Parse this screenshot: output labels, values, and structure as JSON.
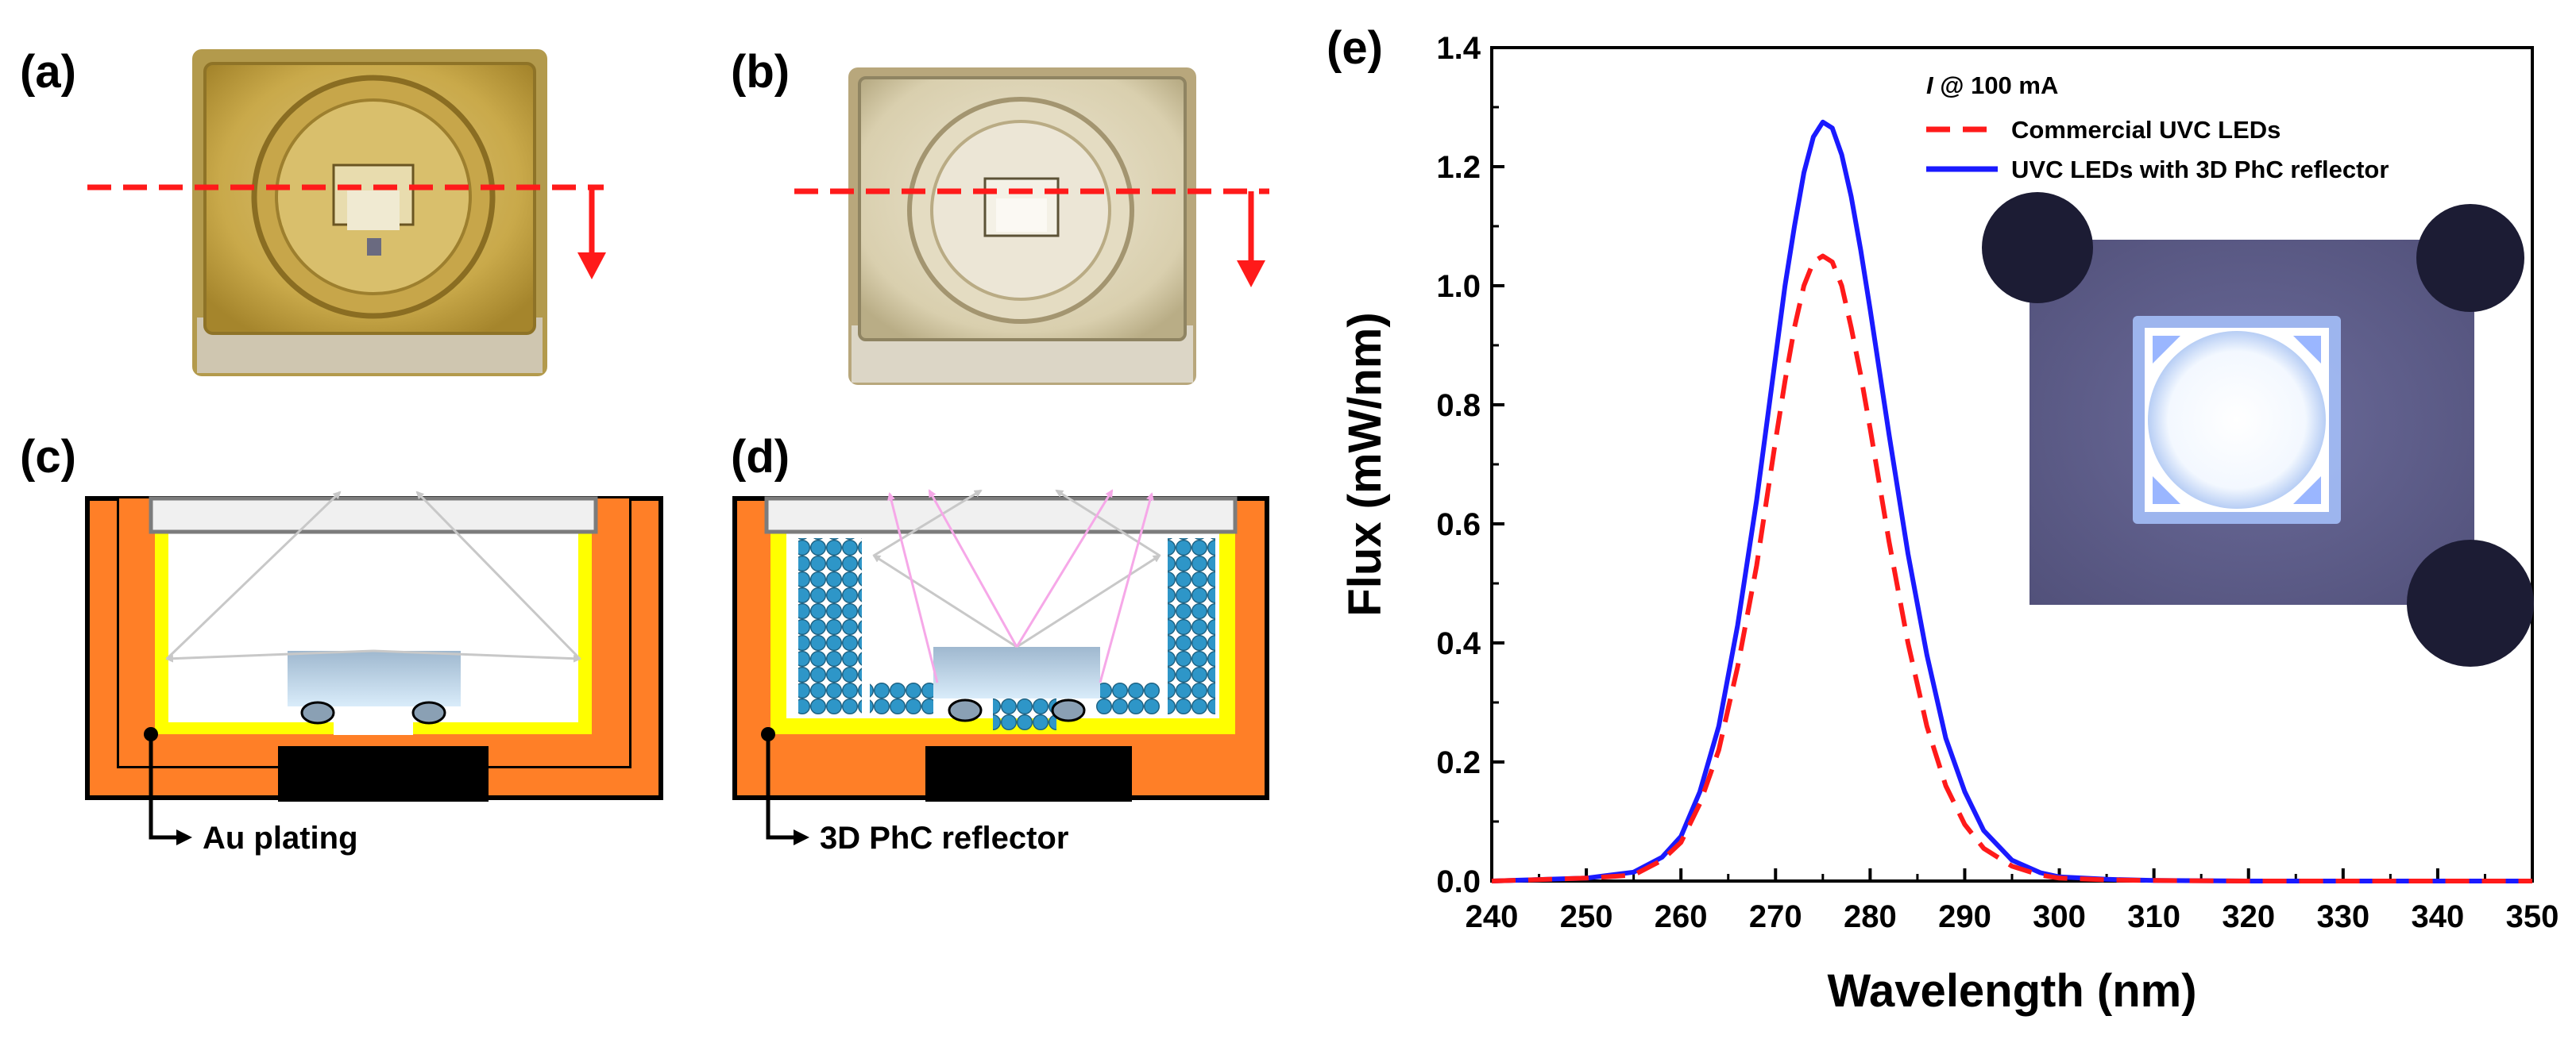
{
  "panels": {
    "a": "(a)",
    "b": "(b)",
    "c": "(c)",
    "d": "(d)",
    "e": "(e)"
  },
  "annotations": {
    "au_plating": "Au plating",
    "phc_reflector": "3D PhC reflector"
  },
  "colors": {
    "commercial": "#ff1a1a",
    "phc": "#1a1aff",
    "package_orange": "#ff7f27",
    "plating_yellow": "#ffff00",
    "sphere_blue": "#2e96c8"
  },
  "chart_data": {
    "type": "line",
    "title": "",
    "xlabel": "Wavelength (nm)",
    "ylabel": "Flux (mW/nm)",
    "xlim": [
      240,
      350
    ],
    "ylim": [
      0,
      1.4
    ],
    "xticks": [
      240,
      250,
      260,
      270,
      280,
      290,
      300,
      310,
      320,
      330,
      340,
      350
    ],
    "yticks": [
      "0.0",
      "0.2",
      "0.4",
      "0.6",
      "0.8",
      "1.0",
      "1.2",
      "1.4"
    ],
    "legend_title_italic": "I",
    "legend_title_rest": " @ 100 mA",
    "legend_position": "top-right",
    "x": [
      240,
      250,
      255,
      258,
      260,
      262,
      264,
      266,
      268,
      270,
      271,
      272,
      273,
      274,
      275,
      276,
      277,
      278,
      279,
      280,
      282,
      284,
      286,
      288,
      290,
      292,
      295,
      298,
      300,
      305,
      310,
      320,
      330,
      340,
      350
    ],
    "series": [
      {
        "name": "Commercial UVC LEDs",
        "style": "dashed",
        "values": [
          0.0,
          0.005,
          0.01,
          0.035,
          0.065,
          0.13,
          0.22,
          0.36,
          0.53,
          0.74,
          0.84,
          0.93,
          1.0,
          1.04,
          1.05,
          1.04,
          1.0,
          0.93,
          0.85,
          0.76,
          0.57,
          0.4,
          0.26,
          0.16,
          0.095,
          0.055,
          0.025,
          0.01,
          0.005,
          0.002,
          0.001,
          0.0,
          0.0,
          0.0,
          0.0
        ]
      },
      {
        "name": "UVC LEDs with 3D PhC reflector",
        "style": "solid",
        "values": [
          0.0,
          0.005,
          0.015,
          0.04,
          0.075,
          0.15,
          0.26,
          0.43,
          0.64,
          0.88,
          1.0,
          1.1,
          1.19,
          1.25,
          1.275,
          1.265,
          1.22,
          1.15,
          1.06,
          0.96,
          0.75,
          0.55,
          0.38,
          0.24,
          0.15,
          0.085,
          0.035,
          0.014,
          0.007,
          0.003,
          0.001,
          0.0,
          0.0,
          0.0,
          0.0
        ]
      }
    ]
  }
}
